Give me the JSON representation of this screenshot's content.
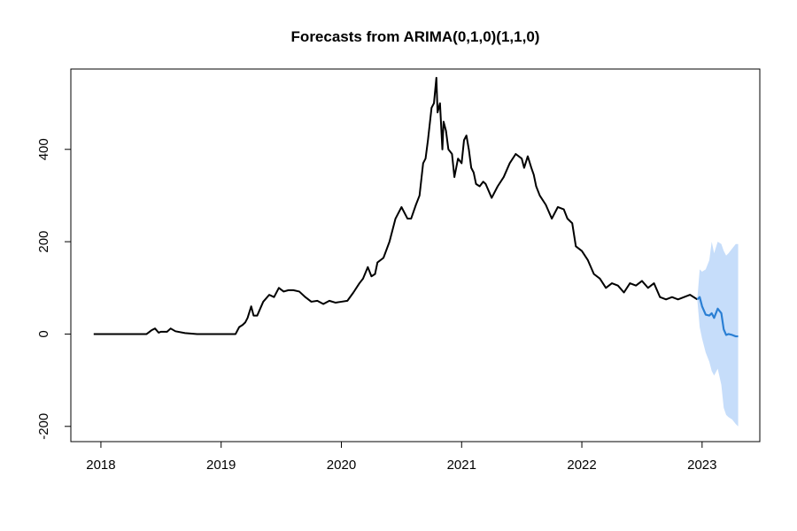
{
  "chart_data": {
    "type": "line",
    "title": "Forecasts from ARIMA(0,1,0)(1,1,0)",
    "xlabel": "",
    "ylabel": "",
    "x_ticks": [
      2018,
      2019,
      2020,
      2021,
      2022,
      2023
    ],
    "y_ticks": [
      -200,
      0,
      200,
      400
    ],
    "xlim": [
      2017.75,
      2023.48
    ],
    "ylim": [
      -233,
      574
    ],
    "grid": false,
    "legend": "none",
    "colors": {
      "observed": "#000000",
      "forecast": "#2a7fd4",
      "interval": "#c6ddfa"
    },
    "series": [
      {
        "kind": "observed",
        "x": [
          2017.94,
          2018.0,
          2018.1,
          2018.2,
          2018.3,
          2018.38,
          2018.42,
          2018.45,
          2018.48,
          2018.5,
          2018.55,
          2018.58,
          2018.62,
          2018.7,
          2018.8,
          2018.9,
          2019.0,
          2019.1,
          2019.12,
          2019.15,
          2019.18,
          2019.2,
          2019.22,
          2019.25,
          2019.27,
          2019.3,
          2019.35,
          2019.4,
          2019.44,
          2019.48,
          2019.52,
          2019.56,
          2019.6,
          2019.65,
          2019.7,
          2019.75,
          2019.8,
          2019.85,
          2019.9,
          2019.95,
          2020.0,
          2020.05,
          2020.1,
          2020.15,
          2020.18,
          2020.22,
          2020.25,
          2020.28,
          2020.3,
          2020.35,
          2020.4,
          2020.45,
          2020.5,
          2020.55,
          2020.58,
          2020.62,
          2020.65,
          2020.68,
          2020.7,
          2020.72,
          2020.75,
          2020.77,
          2020.79,
          2020.8,
          2020.82,
          2020.84,
          2020.85,
          2020.87,
          2020.89,
          2020.92,
          2020.94,
          2020.97,
          2021.0,
          2021.02,
          2021.04,
          2021.06,
          2021.08,
          2021.1,
          2021.12,
          2021.15,
          2021.18,
          2021.2,
          2021.25,
          2021.3,
          2021.35,
          2021.4,
          2021.45,
          2021.5,
          2021.52,
          2021.55,
          2021.58,
          2021.6,
          2021.62,
          2021.65,
          2021.7,
          2021.75,
          2021.8,
          2021.85,
          2021.88,
          2021.92,
          2021.95,
          2022.0,
          2022.05,
          2022.1,
          2022.15,
          2022.2,
          2022.25,
          2022.3,
          2022.35,
          2022.4,
          2022.45,
          2022.5,
          2022.55,
          2022.6,
          2022.65,
          2022.7,
          2022.75,
          2022.8,
          2022.85,
          2022.9,
          2022.96
        ],
        "y": [
          0,
          0,
          0,
          0,
          0,
          0,
          8,
          12,
          3,
          5,
          5,
          12,
          6,
          2,
          0,
          0,
          0,
          0,
          0,
          15,
          20,
          25,
          35,
          60,
          40,
          40,
          70,
          85,
          80,
          100,
          92,
          95,
          95,
          92,
          80,
          70,
          72,
          65,
          72,
          68,
          70,
          72,
          90,
          110,
          120,
          145,
          125,
          130,
          155,
          165,
          200,
          250,
          275,
          250,
          250,
          280,
          300,
          370,
          380,
          420,
          490,
          500,
          555,
          480,
          500,
          400,
          460,
          440,
          400,
          390,
          340,
          380,
          370,
          420,
          430,
          400,
          360,
          350,
          325,
          320,
          330,
          325,
          295,
          320,
          340,
          370,
          390,
          380,
          360,
          385,
          360,
          345,
          320,
          300,
          280,
          250,
          275,
          270,
          250,
          240,
          190,
          180,
          160,
          130,
          120,
          100,
          110,
          105,
          90,
          110,
          105,
          115,
          100,
          110,
          80,
          75,
          80,
          75,
          80,
          85,
          75
        ]
      },
      {
        "kind": "forecast",
        "x": [
          2022.96,
          2022.98,
          2023.0,
          2023.03,
          2023.06,
          2023.08,
          2023.1,
          2023.13,
          2023.16,
          2023.18,
          2023.2,
          2023.22,
          2023.25,
          2023.28,
          2023.3
        ],
        "y": [
          75,
          80,
          60,
          42,
          40,
          45,
          35,
          55,
          45,
          10,
          -2,
          0,
          -2,
          -5,
          -5
        ]
      }
    ],
    "interval": {
      "x": [
        2022.96,
        2022.98,
        2023.0,
        2023.03,
        2023.06,
        2023.08,
        2023.1,
        2023.13,
        2023.16,
        2023.18,
        2023.2,
        2023.22,
        2023.25,
        2023.28,
        2023.3
      ],
      "lower": [
        75,
        15,
        -10,
        -40,
        -60,
        -80,
        -90,
        -75,
        -110,
        -160,
        -175,
        -180,
        -185,
        -195,
        -200
      ],
      "upper": [
        75,
        140,
        135,
        140,
        160,
        200,
        175,
        200,
        195,
        180,
        170,
        175,
        185,
        195,
        195
      ]
    }
  }
}
